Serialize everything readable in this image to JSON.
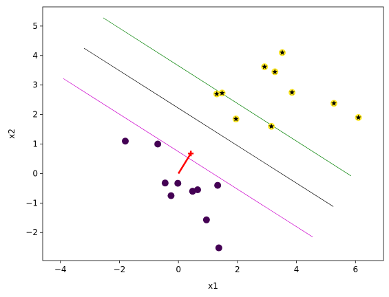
{
  "chart_data": {
    "type": "scatter",
    "title": "",
    "xlabel": "x1",
    "ylabel": "x2",
    "xlim": [
      -4.6,
      6.95
    ],
    "ylim": [
      -2.95,
      5.65
    ],
    "xticks": [
      -4,
      -2,
      0,
      2,
      4,
      6
    ],
    "yticks": [
      -2,
      -1,
      0,
      1,
      2,
      3,
      4,
      5
    ],
    "grid": false,
    "legend": "none",
    "colors": {
      "class0": "#440154",
      "class1": "#fde725",
      "star": "#000000",
      "boundary": "#000000",
      "margin_upper": "#008000",
      "margin_lower": "#cc00cc",
      "weight_vector": "#ff0000"
    },
    "class0_points": [
      {
        "x": -1.8,
        "y": 1.1
      },
      {
        "x": -0.7,
        "y": 1.0
      },
      {
        "x": -0.45,
        "y": -0.32
      },
      {
        "x": -0.25,
        "y": -0.75
      },
      {
        "x": -0.02,
        "y": -0.33
      },
      {
        "x": 0.48,
        "y": -0.6
      },
      {
        "x": 0.65,
        "y": -0.55
      },
      {
        "x": 0.95,
        "y": -1.57
      },
      {
        "x": 1.33,
        "y": -0.4
      },
      {
        "x": 1.37,
        "y": -2.52
      }
    ],
    "class1_points": [
      {
        "x": 1.3,
        "y": 2.7
      },
      {
        "x": 1.48,
        "y": 2.73
      },
      {
        "x": 1.95,
        "y": 1.85
      },
      {
        "x": 2.92,
        "y": 3.62
      },
      {
        "x": 3.27,
        "y": 3.45
      },
      {
        "x": 3.52,
        "y": 4.1
      },
      {
        "x": 3.15,
        "y": 1.6
      },
      {
        "x": 3.85,
        "y": 2.75
      },
      {
        "x": 5.27,
        "y": 2.38
      },
      {
        "x": 6.1,
        "y": 1.9
      }
    ],
    "lines": [
      {
        "role": "boundary",
        "x": [
          -3.2,
          5.25
        ],
        "y": [
          4.25,
          -1.12
        ]
      },
      {
        "role": "margin_upper",
        "x": [
          -2.55,
          5.85
        ],
        "y": [
          5.28,
          -0.08
        ]
      },
      {
        "role": "margin_lower",
        "x": [
          -3.9,
          4.55
        ],
        "y": [
          3.22,
          -2.15
        ]
      }
    ],
    "weight_vector": {
      "x": [
        0.0,
        0.42
      ],
      "y": [
        0.0,
        0.68
      ]
    }
  }
}
